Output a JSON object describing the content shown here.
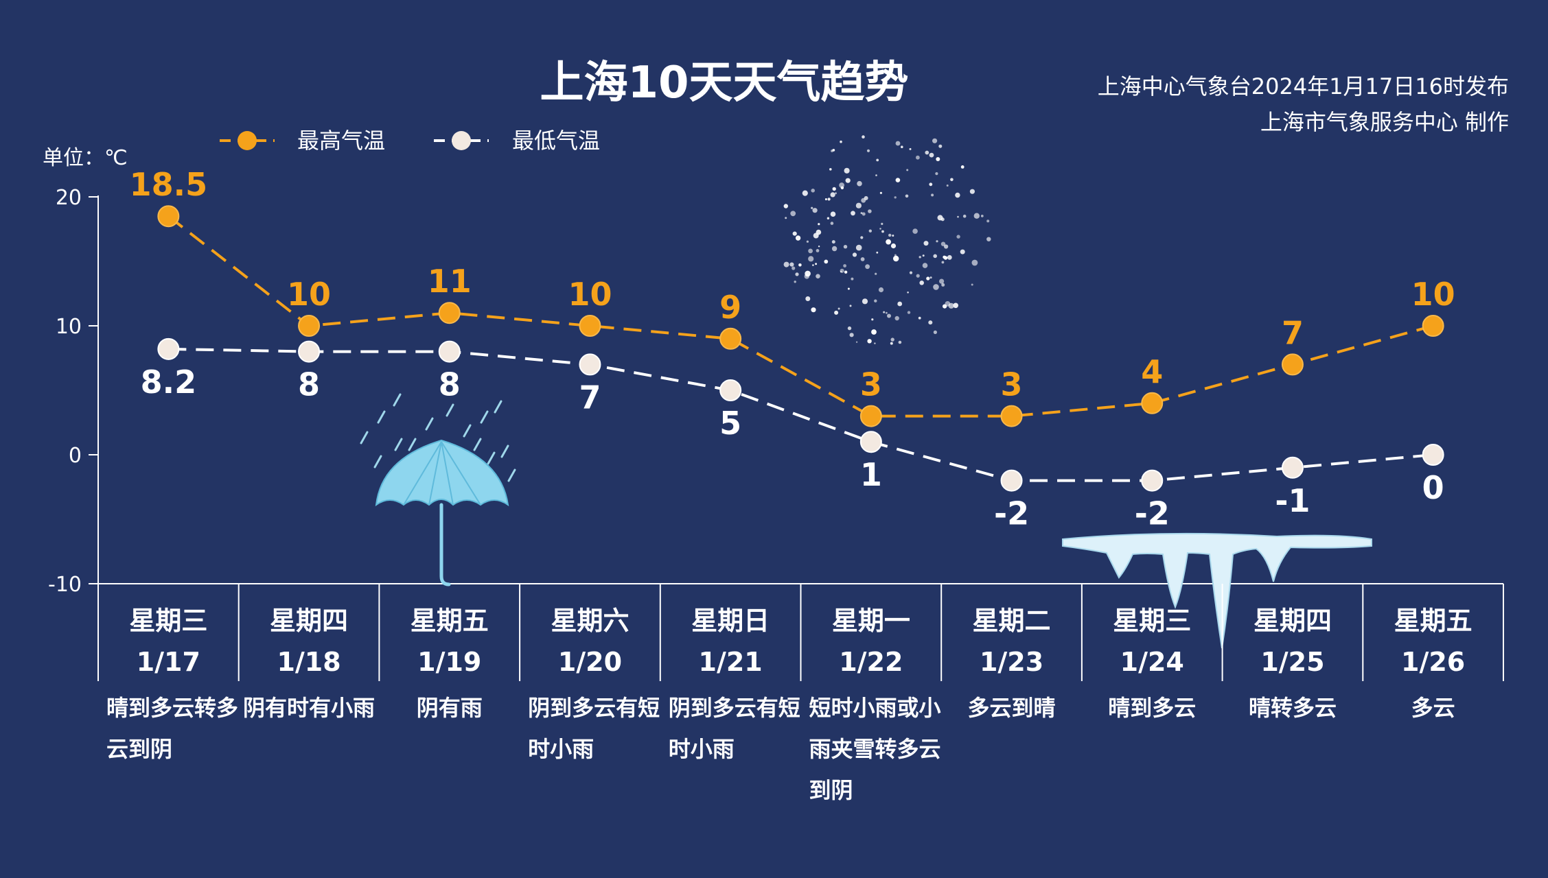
{
  "header": {
    "title": "上海10天天气趋势",
    "issuer_line1": "上海中心气象台2024年1月17日16时发布",
    "issuer_line2": "上海市气象服务中心 制作"
  },
  "colors": {
    "background": "#233464",
    "high": "#F5A21B",
    "low": "#FFFFFF",
    "low_marker": "#F3E9E1",
    "text": "#FFFFFF"
  },
  "chart_data": {
    "type": "line",
    "unit_label": "单位：℃",
    "yticks": [
      "20",
      "10",
      "0",
      "-10"
    ],
    "ylim": [
      -10,
      20
    ],
    "legend_position": "top-left",
    "days": [
      {
        "weekday": "星期三",
        "date": "1/17",
        "weather": "晴到多云转多云到阴"
      },
      {
        "weekday": "星期四",
        "date": "1/18",
        "weather": "阴有时有小雨"
      },
      {
        "weekday": "星期五",
        "date": "1/19",
        "weather": "阴有雨"
      },
      {
        "weekday": "星期六",
        "date": "1/20",
        "weather": "阴到多云有短时小雨"
      },
      {
        "weekday": "星期日",
        "date": "1/21",
        "weather": "阴到多云有短时小雨"
      },
      {
        "weekday": "星期一",
        "date": "1/22",
        "weather": "短时小雨或小雨夹雪转多云到阴"
      },
      {
        "weekday": "星期二",
        "date": "1/23",
        "weather": "多云到晴"
      },
      {
        "weekday": "星期三",
        "date": "1/24",
        "weather": "晴到多云"
      },
      {
        "weekday": "星期四",
        "date": "1/25",
        "weather": "晴转多云"
      },
      {
        "weekday": "星期五",
        "date": "1/26",
        "weather": "多云"
      }
    ],
    "series": [
      {
        "name": "最高气温",
        "values": [
          18.5,
          10,
          11,
          10,
          9,
          3,
          3,
          4,
          7,
          10
        ],
        "labels": [
          "18.5",
          "10",
          "11",
          "10",
          "9",
          "3",
          "3",
          "4",
          "7",
          "10"
        ]
      },
      {
        "name": "最低气温",
        "values": [
          8.2,
          8,
          8,
          7,
          5,
          1,
          -2,
          -2,
          -1,
          0
        ],
        "labels": [
          "8.2",
          "8",
          "8",
          "7",
          "5",
          "1",
          "-2",
          "-2",
          "-1",
          "0"
        ]
      }
    ]
  },
  "icons": {
    "umbrella": "umbrella-rain-icon",
    "snow": "snowflakes-icon",
    "icicle": "icicle-icon"
  }
}
